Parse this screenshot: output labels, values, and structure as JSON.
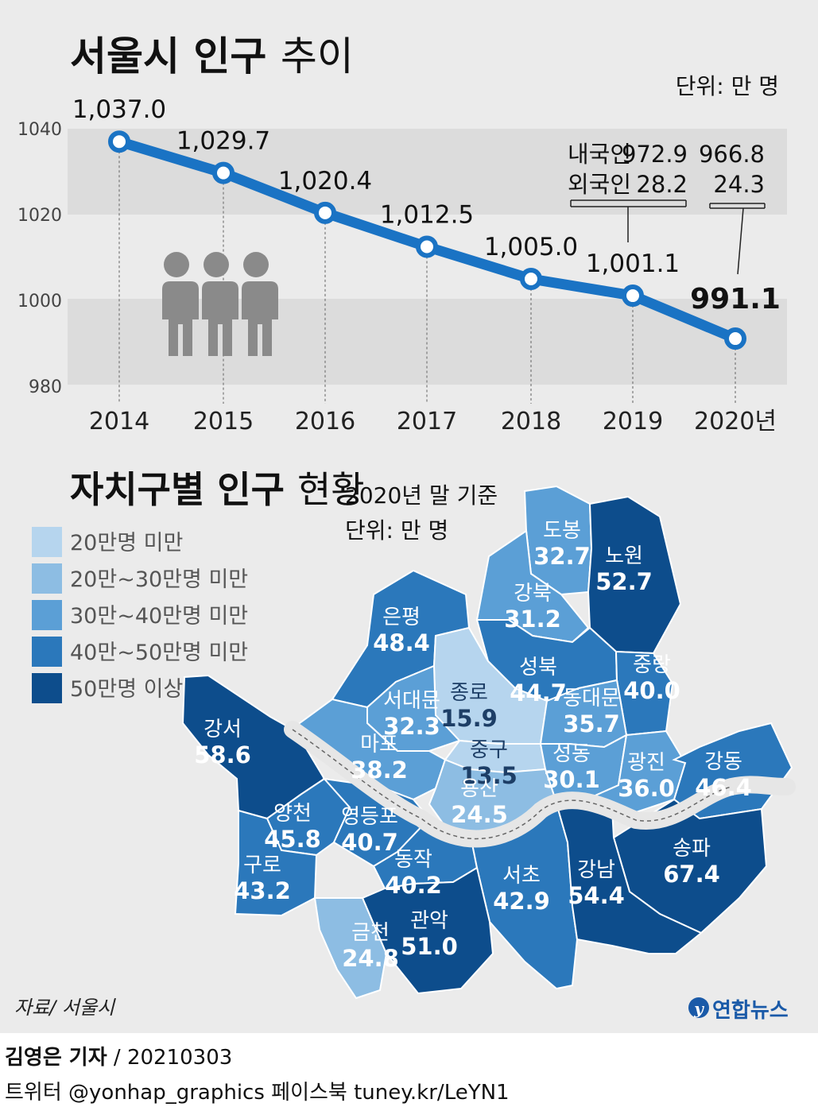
{
  "chart_data": [
    {
      "type": "line",
      "title": "서울시 인구",
      "title_suffix": "추이",
      "unit": "단위: 만 명",
      "categories": [
        "2014",
        "2015",
        "2016",
        "2017",
        "2018",
        "2019",
        "2020년"
      ],
      "values": [
        1037.0,
        1029.7,
        1020.4,
        1012.5,
        1005.0,
        1001.1,
        991.1
      ],
      "value_labels": [
        "1,037.0",
        "1,029.7",
        "1,020.4",
        "1,012.5",
        "1,005.0",
        "1,001.1",
        "991.1"
      ],
      "ylim": [
        980,
        1045
      ],
      "yticks": [
        "1040",
        "1020",
        "1000",
        "980"
      ],
      "ytick_values": [
        1040,
        1020,
        1000,
        980
      ],
      "line_color": "#1a73c4",
      "breakdown": {
        "labels": [
          "내국인",
          "외국인"
        ],
        "y2019": [
          "972.9",
          "28.2"
        ],
        "y2020": [
          "966.8",
          "24.3"
        ]
      }
    },
    {
      "type": "map",
      "title": "자치구별 인구",
      "title_suffix": "현황",
      "note": "2020년 말 기준",
      "unit": "단위: 만 명",
      "legend": [
        {
          "label": "20만명 미만",
          "color": "#b6d5ee"
        },
        {
          "label": "20만~30만명 미만",
          "color": "#8dbde3"
        },
        {
          "label": "30만~40만명 미만",
          "color": "#5b9fd6"
        },
        {
          "label": "40만~50만명 미만",
          "color": "#2b78bb"
        },
        {
          "label": "50만명 이상",
          "color": "#0d4d8c"
        }
      ],
      "districts": [
        {
          "name": "도봉",
          "value": "32.7",
          "color": "#5b9fd6"
        },
        {
          "name": "노원",
          "value": "52.7",
          "color": "#0d4d8c"
        },
        {
          "name": "강북",
          "value": "31.2",
          "color": "#5b9fd6"
        },
        {
          "name": "은평",
          "value": "48.4",
          "color": "#2b78bb"
        },
        {
          "name": "성북",
          "value": "44.7",
          "color": "#2b78bb"
        },
        {
          "name": "중랑",
          "value": "40.0",
          "color": "#2b78bb"
        },
        {
          "name": "종로",
          "value": "15.9",
          "color": "#b6d5ee"
        },
        {
          "name": "서대문",
          "value": "32.3",
          "color": "#5b9fd6"
        },
        {
          "name": "동대문",
          "value": "35.7",
          "color": "#5b9fd6"
        },
        {
          "name": "중구",
          "value": "13.5",
          "color": "#b6d5ee"
        },
        {
          "name": "마포",
          "value": "38.2",
          "color": "#5b9fd6"
        },
        {
          "name": "성동",
          "value": "30.1",
          "color": "#5b9fd6"
        },
        {
          "name": "광진",
          "value": "36.0",
          "color": "#5b9fd6"
        },
        {
          "name": "강서",
          "value": "58.6",
          "color": "#0d4d8c"
        },
        {
          "name": "강동",
          "value": "46.4",
          "color": "#2b78bb"
        },
        {
          "name": "용산",
          "value": "24.5",
          "color": "#8dbde3"
        },
        {
          "name": "양천",
          "value": "45.8",
          "color": "#2b78bb"
        },
        {
          "name": "영등포",
          "value": "40.7",
          "color": "#2b78bb"
        },
        {
          "name": "송파",
          "value": "67.4",
          "color": "#0d4d8c"
        },
        {
          "name": "구로",
          "value": "43.2",
          "color": "#2b78bb"
        },
        {
          "name": "동작",
          "value": "40.2",
          "color": "#2b78bb"
        },
        {
          "name": "서초",
          "value": "42.9",
          "color": "#2b78bb"
        },
        {
          "name": "강남",
          "value": "54.4",
          "color": "#0d4d8c"
        },
        {
          "name": "관악",
          "value": "51.0",
          "color": "#0d4d8c"
        },
        {
          "name": "금천",
          "value": "24.8",
          "color": "#8dbde3"
        }
      ]
    }
  ],
  "source": "자료/ 서울시",
  "logo_text": "연합뉴스",
  "byline_reporter": "김영은 기자",
  "byline_date": "/ 20210303",
  "social": "트위터 @yonhap_graphics  페이스북 tuney.kr/LeYN1"
}
